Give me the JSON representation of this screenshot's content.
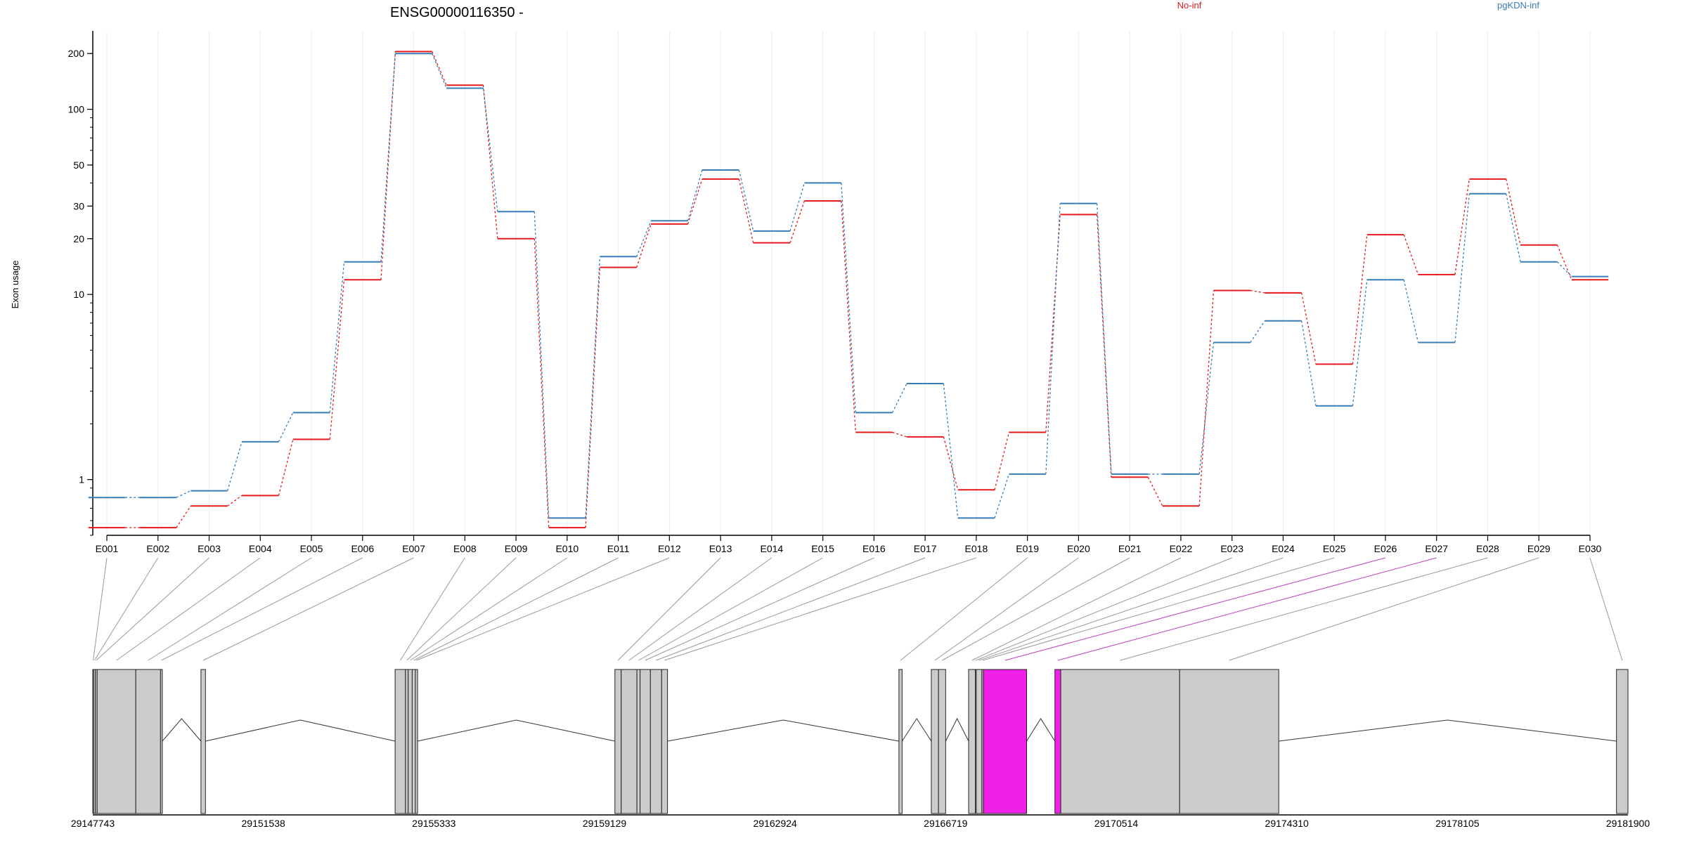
{
  "chart_data": {
    "type": "line",
    "title": "ENSG00000116350 -",
    "ylabel": "Exon usage",
    "xlabel": "",
    "y_scale": "log",
    "ylim": [
      0.5,
      265
    ],
    "y_ticks": [
      1,
      10,
      20,
      30,
      50,
      100,
      200
    ],
    "grid": "vertical lines per exon",
    "legend_placement": "top",
    "categories": [
      "E001",
      "E002",
      "E003",
      "E004",
      "E005",
      "E006",
      "E007",
      "E008",
      "E009",
      "E010",
      "E011",
      "E012",
      "E013",
      "E014",
      "E015",
      "E016",
      "E017",
      "E018",
      "E019",
      "E020",
      "E021",
      "E022",
      "E023",
      "E024",
      "E025",
      "E026",
      "E027",
      "E028",
      "E029",
      "E030"
    ],
    "series": [
      {
        "name": "No-inf",
        "color": "#e41a1c",
        "line_style": "dashed",
        "values": [
          0.55,
          0.55,
          0.72,
          0.82,
          1.65,
          12,
          205,
          135,
          20,
          0.55,
          14,
          24,
          42,
          19,
          32,
          1.8,
          1.7,
          0.88,
          1.8,
          27,
          1.03,
          0.72,
          10.5,
          10.2,
          4.2,
          21,
          12.8,
          42,
          18.5,
          12
        ]
      },
      {
        "name": "pgKDN-inf",
        "color": "#377eb8",
        "line_style": "dashed",
        "values": [
          0.8,
          0.8,
          0.87,
          1.6,
          2.3,
          15,
          200,
          130,
          28,
          0.62,
          16,
          25,
          47,
          22,
          40,
          2.3,
          3.3,
          0.62,
          1.07,
          31,
          1.07,
          1.07,
          5.5,
          7.2,
          2.5,
          12,
          5.5,
          35,
          15,
          12.5
        ]
      }
    ],
    "genomic_axis": {
      "tick_labels": [
        "29147743",
        "29151538",
        "29155333",
        "29159129",
        "29162924",
        "29166719",
        "29170514",
        "29174310",
        "29178105",
        "29181900"
      ],
      "tick_values": [
        29147743,
        29151538,
        29155333,
        29159129,
        29162924,
        29166719,
        29170514,
        29174310,
        29178105,
        29181900
      ],
      "exon_fill": "#cccccc",
      "highlight_fill": "#f020e8",
      "highlighted_exons": [
        "E026",
        "E027"
      ],
      "exons": [
        {
          "id": "E001",
          "start": 29147743,
          "end": 29147760
        },
        {
          "id": "E002",
          "start": 29147760,
          "end": 29147800
        },
        {
          "id": "E003",
          "start": 29147800,
          "end": 29147840
        },
        {
          "id": "E004",
          "start": 29147840,
          "end": 29148700
        },
        {
          "id": "E005",
          "start": 29148700,
          "end": 29149250
        },
        {
          "id": "E006",
          "start": 29149250,
          "end": 29149290
        },
        {
          "id": "E007",
          "start": 29150150,
          "end": 29150250
        },
        {
          "id": "E008",
          "start": 29154470,
          "end": 29154700
        },
        {
          "id": "E009",
          "start": 29154700,
          "end": 29154760
        },
        {
          "id": "E010",
          "start": 29154760,
          "end": 29154850
        },
        {
          "id": "E011",
          "start": 29154850,
          "end": 29154920
        },
        {
          "id": "E012",
          "start": 29154920,
          "end": 29154970
        },
        {
          "id": "E013",
          "start": 29159360,
          "end": 29159500
        },
        {
          "id": "E014",
          "start": 29159500,
          "end": 29159850
        },
        {
          "id": "E015",
          "start": 29159850,
          "end": 29159920
        },
        {
          "id": "E016",
          "start": 29159920,
          "end": 29160150
        },
        {
          "id": "E017",
          "start": 29160150,
          "end": 29160400
        },
        {
          "id": "E018",
          "start": 29160400,
          "end": 29160530
        },
        {
          "id": "E019",
          "start": 29165680,
          "end": 29165750
        },
        {
          "id": "E020",
          "start": 29166400,
          "end": 29166560
        },
        {
          "id": "E021",
          "start": 29166560,
          "end": 29166719
        },
        {
          "id": "E022",
          "start": 29167230,
          "end": 29167380
        },
        {
          "id": "E023",
          "start": 29167380,
          "end": 29167400
        },
        {
          "id": "E024",
          "start": 29167400,
          "end": 29167525
        },
        {
          "id": "E025",
          "start": 29167525,
          "end": 29167560
        },
        {
          "id": "E026",
          "start": 29167560,
          "end": 29168520
        },
        {
          "id": "E027",
          "start": 29169150,
          "end": 29169280
        },
        {
          "id": "E028",
          "start": 29169280,
          "end": 29171925
        },
        {
          "id": "E029",
          "start": 29171925,
          "end": 29174130
        },
        {
          "id": "E030",
          "start": 29181645,
          "end": 29181900
        }
      ]
    }
  }
}
